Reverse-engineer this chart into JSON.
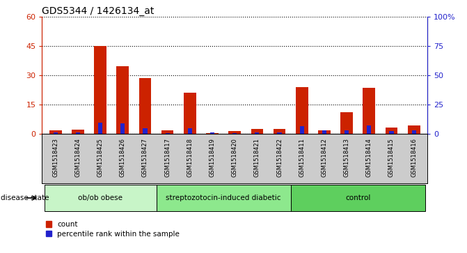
{
  "title": "GDS5344 / 1426134_at",
  "samples": [
    "GSM1518423",
    "GSM1518424",
    "GSM1518425",
    "GSM1518426",
    "GSM1518427",
    "GSM1518417",
    "GSM1518418",
    "GSM1518419",
    "GSM1518420",
    "GSM1518421",
    "GSM1518422",
    "GSM1518411",
    "GSM1518412",
    "GSM1518413",
    "GSM1518414",
    "GSM1518415",
    "GSM1518416"
  ],
  "count_values": [
    2.0,
    2.2,
    45.0,
    34.5,
    28.5,
    2.0,
    21.0,
    0.5,
    1.5,
    2.5,
    2.5,
    24.0,
    2.0,
    11.0,
    23.5,
    3.5,
    4.5
  ],
  "percentile_values": [
    1.0,
    1.0,
    6.0,
    5.5,
    3.0,
    0.5,
    3.0,
    1.0,
    0.5,
    1.0,
    1.0,
    4.0,
    2.0,
    2.0,
    4.5,
    1.5,
    2.0
  ],
  "groups": [
    {
      "name": "ob/ob obese",
      "start": 0,
      "end": 5
    },
    {
      "name": "streptozotocin-induced diabetic",
      "start": 5,
      "end": 11
    },
    {
      "name": "control",
      "start": 11,
      "end": 17
    }
  ],
  "group_colors": [
    "#c8f5c8",
    "#8de88d",
    "#5ecf5e"
  ],
  "ylim_left": [
    0,
    60
  ],
  "ylim_right": [
    0,
    100
  ],
  "yticks_left": [
    0,
    15,
    30,
    45,
    60
  ],
  "yticks_right": [
    0,
    25,
    50,
    75,
    100
  ],
  "ytick_labels_right": [
    "0",
    "25",
    "50",
    "75",
    "100%"
  ],
  "bar_color_red": "#cc2200",
  "bar_color_blue": "#2222cc",
  "xtick_bg_color": "#cccccc",
  "left_axis_color": "#cc2200",
  "right_axis_color": "#2222cc",
  "disease_state_label": "disease state",
  "legend_count": "count",
  "legend_percentile": "percentile rank within the sample"
}
